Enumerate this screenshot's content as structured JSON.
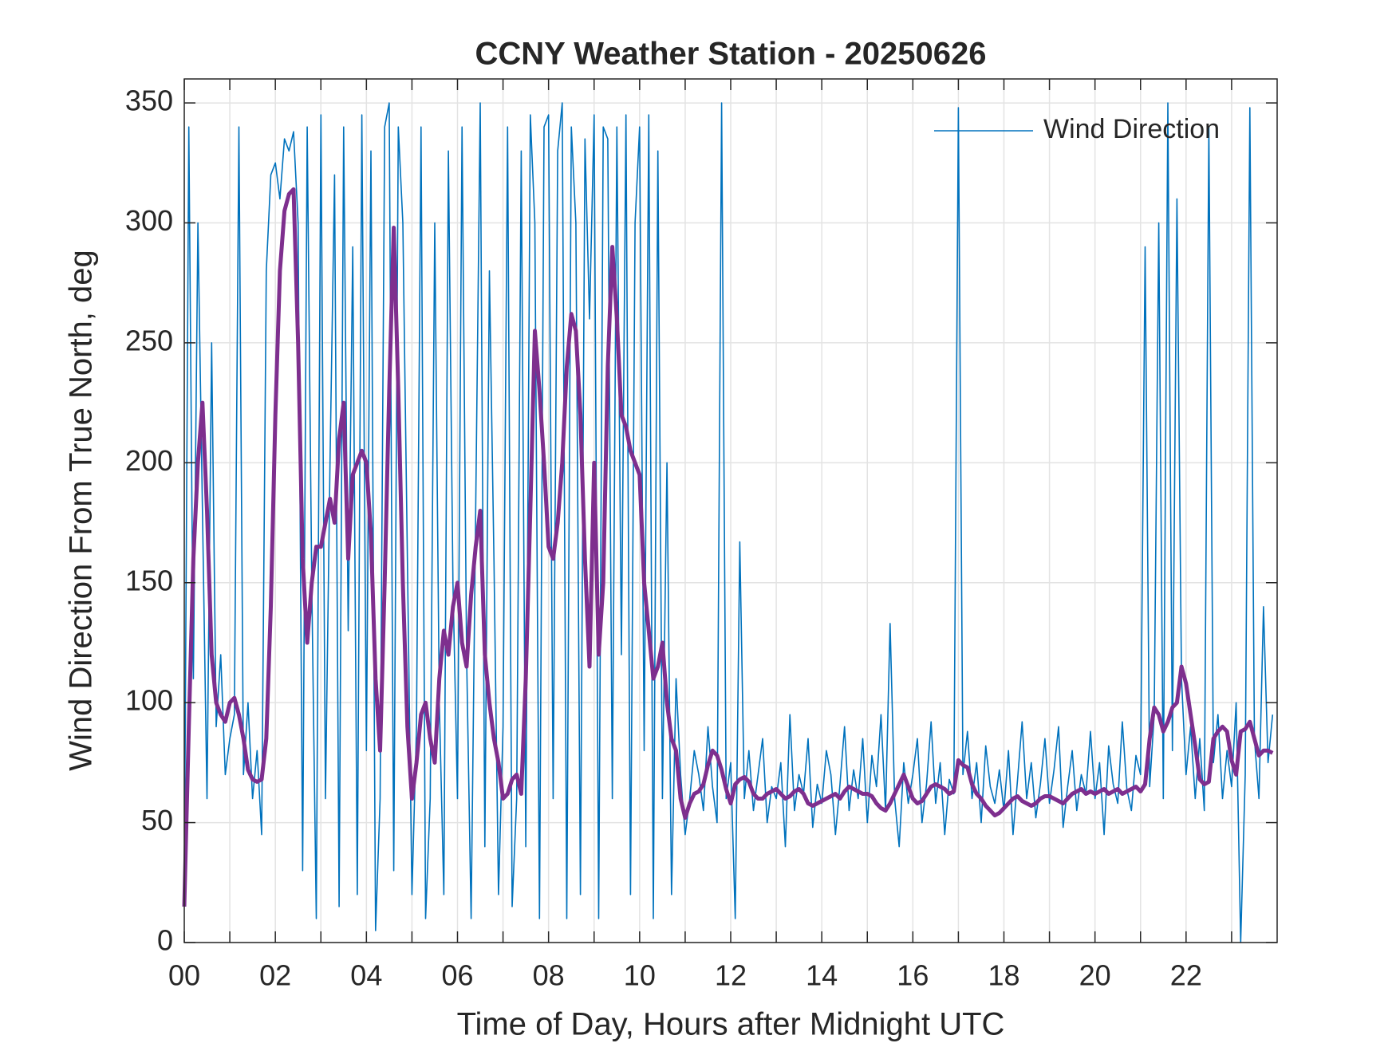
{
  "chart_data": {
    "type": "line",
    "title": "CCNY Weather Station - 20250626",
    "xlabel": "Time of Day, Hours after Midnight UTC",
    "ylabel": "Wind Direction From True North, deg",
    "xlim": [
      0,
      24
    ],
    "ylim": [
      0,
      360
    ],
    "xticks": [
      {
        "value": 0,
        "label": "00"
      },
      {
        "value": 2,
        "label": "02"
      },
      {
        "value": 4,
        "label": "04"
      },
      {
        "value": 6,
        "label": "06"
      },
      {
        "value": 8,
        "label": "08"
      },
      {
        "value": 10,
        "label": "10"
      },
      {
        "value": 12,
        "label": "12"
      },
      {
        "value": 14,
        "label": "14"
      },
      {
        "value": 16,
        "label": "16"
      },
      {
        "value": 18,
        "label": "18"
      },
      {
        "value": 20,
        "label": "20"
      },
      {
        "value": 22,
        "label": "22"
      }
    ],
    "xminorticks": [
      1,
      3,
      5,
      7,
      9,
      11,
      13,
      15,
      17,
      19,
      21,
      23
    ],
    "yticks": [
      0,
      50,
      100,
      150,
      200,
      250,
      300,
      350
    ],
    "grid": true,
    "legend": "top-right",
    "x": [
      0,
      0.1,
      0.2,
      0.3,
      0.4,
      0.5,
      0.6,
      0.7,
      0.8,
      0.9,
      1,
      1.1,
      1.2,
      1.3,
      1.4,
      1.5,
      1.6,
      1.7,
      1.8,
      1.9,
      2,
      2.1,
      2.2,
      2.3,
      2.4,
      2.5,
      2.6,
      2.7,
      2.8,
      2.9,
      3,
      3.1,
      3.2,
      3.3,
      3.4,
      3.5,
      3.6,
      3.7,
      3.8,
      3.9,
      4,
      4.1,
      4.2,
      4.3,
      4.4,
      4.5,
      4.6,
      4.7,
      4.8,
      4.9,
      5,
      5.1,
      5.2,
      5.3,
      5.4,
      5.5,
      5.6,
      5.7,
      5.8,
      5.9,
      6,
      6.1,
      6.2,
      6.3,
      6.4,
      6.5,
      6.6,
      6.7,
      6.8,
      6.9,
      7,
      7.1,
      7.2,
      7.3,
      7.4,
      7.5,
      7.6,
      7.7,
      7.8,
      7.9,
      8,
      8.1,
      8.2,
      8.3,
      8.4,
      8.5,
      8.6,
      8.7,
      8.8,
      8.9,
      9,
      9.1,
      9.2,
      9.3,
      9.4,
      9.5,
      9.6,
      9.7,
      9.8,
      9.9,
      10,
      10.1,
      10.2,
      10.3,
      10.4,
      10.5,
      10.6,
      10.7,
      10.8,
      10.9,
      11,
      11.1,
      11.2,
      11.3,
      11.4,
      11.5,
      11.6,
      11.7,
      11.8,
      11.9,
      12,
      12.1,
      12.2,
      12.3,
      12.4,
      12.5,
      12.6,
      12.7,
      12.8,
      12.9,
      13,
      13.1,
      13.2,
      13.3,
      13.4,
      13.5,
      13.6,
      13.7,
      13.8,
      13.9,
      14,
      14.1,
      14.2,
      14.3,
      14.4,
      14.5,
      14.6,
      14.7,
      14.8,
      14.9,
      15,
      15.1,
      15.2,
      15.3,
      15.4,
      15.5,
      15.6,
      15.7,
      15.8,
      15.9,
      16,
      16.1,
      16.2,
      16.3,
      16.4,
      16.5,
      16.6,
      16.7,
      16.8,
      16.9,
      17,
      17.1,
      17.2,
      17.3,
      17.4,
      17.5,
      17.6,
      17.7,
      17.8,
      17.9,
      18,
      18.1,
      18.2,
      18.3,
      18.4,
      18.5,
      18.6,
      18.7,
      18.8,
      18.9,
      19,
      19.1,
      19.2,
      19.3,
      19.4,
      19.5,
      19.6,
      19.7,
      19.8,
      19.9,
      20,
      20.1,
      20.2,
      20.3,
      20.4,
      20.5,
      20.6,
      20.7,
      20.8,
      20.9,
      21,
      21.1,
      21.2,
      21.3,
      21.4,
      21.5,
      21.6,
      21.7,
      21.8,
      21.9,
      22,
      22.1,
      22.2,
      22.3,
      22.4,
      22.5,
      22.6,
      22.7,
      22.8,
      22.9,
      23,
      23.1,
      23.2,
      23.3,
      23.4,
      23.5,
      23.6,
      23.7,
      23.8,
      23.9
    ],
    "series": [
      {
        "name": "Wind Direction",
        "color": "#0072bd",
        "values": [
          20,
          340,
          110,
          300,
          180,
          60,
          250,
          90,
          120,
          70,
          85,
          95,
          340,
          70,
          100,
          60,
          80,
          45,
          280,
          320,
          325,
          310,
          335,
          330,
          338,
          300,
          30,
          340,
          150,
          10,
          345,
          60,
          200,
          320,
          15,
          340,
          130,
          290,
          20,
          345,
          80,
          330,
          5,
          60,
          340,
          350,
          30,
          340,
          300,
          160,
          20,
          90,
          340,
          10,
          60,
          300,
          100,
          20,
          330,
          150,
          60,
          340,
          120,
          10,
          180,
          350,
          40,
          280,
          160,
          20,
          90,
          340,
          15,
          60,
          330,
          40,
          345,
          300,
          10,
          340,
          345,
          60,
          330,
          350,
          10,
          340,
          300,
          20,
          335,
          260,
          345,
          10,
          340,
          335,
          60,
          340,
          120,
          345,
          20,
          300,
          340,
          80,
          345,
          10,
          330,
          60,
          200,
          20,
          110,
          70,
          45,
          60,
          80,
          70,
          55,
          90,
          65,
          50,
          350,
          60,
          75,
          10,
          167,
          60,
          80,
          55,
          70,
          85,
          50,
          65,
          60,
          75,
          40,
          95,
          55,
          70,
          62,
          85,
          48,
          66,
          58,
          80,
          70,
          45,
          66,
          90,
          55,
          72,
          60,
          85,
          50,
          78,
          65,
          95,
          55,
          133,
          60,
          40,
          75,
          58,
          70,
          85,
          50,
          66,
          92,
          58,
          75,
          45,
          68,
          62,
          348,
          70,
          88,
          60,
          75,
          50,
          82,
          65,
          58,
          72,
          55,
          80,
          45,
          68,
          92,
          60,
          75,
          52,
          66,
          85,
          58,
          72,
          90,
          48,
          65,
          80,
          55,
          70,
          62,
          88,
          60,
          75,
          45,
          82,
          66,
          58,
          92,
          64,
          55,
          78,
          70,
          290,
          65,
          95,
          300,
          60,
          350,
          80,
          310,
          110,
          70,
          90,
          60,
          85,
          55,
          340,
          75,
          95,
          60,
          80,
          65,
          100,
          0,
          70,
          348,
          85,
          60,
          140,
          75,
          95
        ]
      },
      {
        "color": "#7e2f8e",
        "values": [
          15,
          90,
          160,
          200,
          225,
          180,
          120,
          100,
          95,
          92,
          100,
          102,
          95,
          85,
          72,
          68,
          67,
          68,
          85,
          140,
          220,
          280,
          305,
          312,
          314,
          250,
          160,
          125,
          150,
          165,
          165,
          175,
          185,
          175,
          210,
          225,
          160,
          195,
          200,
          205,
          200,
          170,
          110,
          80,
          150,
          230,
          298,
          230,
          150,
          90,
          60,
          75,
          95,
          100,
          85,
          75,
          110,
          130,
          120,
          140,
          150,
          125,
          115,
          145,
          165,
          180,
          120,
          100,
          85,
          75,
          60,
          62,
          68,
          70,
          62,
          110,
          180,
          255,
          230,
          200,
          165,
          160,
          175,
          200,
          240,
          262,
          255,
          220,
          160,
          115,
          200,
          120,
          150,
          240,
          290,
          260,
          220,
          215,
          205,
          200,
          195,
          150,
          130,
          110,
          115,
          125,
          100,
          85,
          80,
          60,
          52,
          58,
          62,
          63,
          66,
          74,
          80,
          78,
          72,
          64,
          58,
          66,
          68,
          69,
          67,
          62,
          60,
          60,
          62,
          63,
          64,
          62,
          60,
          61,
          63,
          64,
          62,
          58,
          57,
          58,
          59,
          60,
          61,
          62,
          60,
          63,
          65,
          64,
          63,
          62,
          62,
          61,
          58,
          56,
          55,
          58,
          62,
          66,
          70,
          65,
          60,
          58,
          59,
          62,
          65,
          66,
          65,
          64,
          62,
          63,
          76,
          74,
          73,
          66,
          62,
          60,
          57,
          55,
          53,
          54,
          56,
          58,
          60,
          61,
          59,
          58,
          57,
          58,
          60,
          61,
          61,
          60,
          59,
          58,
          60,
          62,
          63,
          64,
          62,
          63,
          62,
          63,
          64,
          62,
          63,
          64,
          62,
          63,
          64,
          65,
          63,
          66,
          85,
          98,
          95,
          88,
          92,
          98,
          100,
          115,
          108,
          95,
          82,
          68,
          66,
          67,
          85,
          88,
          90,
          88,
          76,
          70,
          88,
          89,
          92,
          85,
          78,
          80,
          80,
          79
        ]
      }
    ]
  }
}
